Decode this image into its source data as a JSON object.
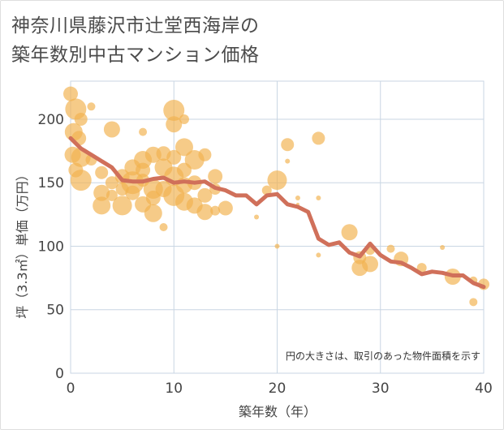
{
  "title_line1": "神奈川県藤沢市辻堂西海岸の",
  "title_line2": "築年数別中古マンション価格",
  "chart_data": {
    "type": "scatter",
    "title": "神奈川県藤沢市辻堂西海岸の築年数別中古マンション価格",
    "xlabel": "築年数（年）",
    "ylabel": "坪（3.3㎡）単価（万円）",
    "note": "円の大きさは、取引のあった物件面積を示す",
    "xlim": [
      0,
      40
    ],
    "ylim": [
      0,
      230
    ],
    "xticks": [
      "0",
      "10",
      "20",
      "30",
      "40"
    ],
    "yticks": [
      "0",
      "50",
      "100",
      "150",
      "200"
    ],
    "grid": true,
    "colors": {
      "bubble": "#f2b24f",
      "line": "#d0705a",
      "grid": "#c9d6e3"
    },
    "bubbles": [
      {
        "x": 0,
        "y": 220,
        "s": 9
      },
      {
        "x": 0.5,
        "y": 208,
        "s": 13
      },
      {
        "x": 0.3,
        "y": 190,
        "s": 11
      },
      {
        "x": 1,
        "y": 200,
        "s": 8
      },
      {
        "x": 0.8,
        "y": 185,
        "s": 9
      },
      {
        "x": 0.2,
        "y": 172,
        "s": 10
      },
      {
        "x": 1,
        "y": 170,
        "s": 12
      },
      {
        "x": 0.5,
        "y": 160,
        "s": 9
      },
      {
        "x": 1,
        "y": 152,
        "s": 13
      },
      {
        "x": 2,
        "y": 210,
        "s": 5
      },
      {
        "x": 2,
        "y": 168,
        "s": 7
      },
      {
        "x": 3,
        "y": 158,
        "s": 8
      },
      {
        "x": 3,
        "y": 142,
        "s": 10
      },
      {
        "x": 3,
        "y": 132,
        "s": 11
      },
      {
        "x": 4,
        "y": 192,
        "s": 10
      },
      {
        "x": 4,
        "y": 150,
        "s": 8
      },
      {
        "x": 4,
        "y": 140,
        "s": 7
      },
      {
        "x": 5,
        "y": 155,
        "s": 9
      },
      {
        "x": 5,
        "y": 145,
        "s": 8
      },
      {
        "x": 5,
        "y": 132,
        "s": 12
      },
      {
        "x": 6,
        "y": 162,
        "s": 10
      },
      {
        "x": 6,
        "y": 150,
        "s": 14
      },
      {
        "x": 6,
        "y": 142,
        "s": 9
      },
      {
        "x": 7,
        "y": 190,
        "s": 5
      },
      {
        "x": 7,
        "y": 168,
        "s": 11
      },
      {
        "x": 7,
        "y": 160,
        "s": 9
      },
      {
        "x": 7,
        "y": 152,
        "s": 8
      },
      {
        "x": 7,
        "y": 133,
        "s": 10
      },
      {
        "x": 8,
        "y": 172,
        "s": 10
      },
      {
        "x": 8,
        "y": 145,
        "s": 12
      },
      {
        "x": 8,
        "y": 138,
        "s": 9
      },
      {
        "x": 8,
        "y": 126,
        "s": 11
      },
      {
        "x": 9,
        "y": 173,
        "s": 9
      },
      {
        "x": 9,
        "y": 162,
        "s": 11
      },
      {
        "x": 9,
        "y": 145,
        "s": 10
      },
      {
        "x": 9,
        "y": 115,
        "s": 5
      },
      {
        "x": 10,
        "y": 207,
        "s": 13
      },
      {
        "x": 10,
        "y": 196,
        "s": 10
      },
      {
        "x": 10,
        "y": 170,
        "s": 9
      },
      {
        "x": 10,
        "y": 155,
        "s": 12
      },
      {
        "x": 10,
        "y": 140,
        "s": 13
      },
      {
        "x": 11,
        "y": 200,
        "s": 6
      },
      {
        "x": 11,
        "y": 178,
        "s": 11
      },
      {
        "x": 11,
        "y": 160,
        "s": 9
      },
      {
        "x": 11,
        "y": 148,
        "s": 10
      },
      {
        "x": 11,
        "y": 135,
        "s": 11
      },
      {
        "x": 12,
        "y": 168,
        "s": 12
      },
      {
        "x": 12,
        "y": 150,
        "s": 9
      },
      {
        "x": 12,
        "y": 132,
        "s": 10
      },
      {
        "x": 13,
        "y": 172,
        "s": 8
      },
      {
        "x": 13,
        "y": 140,
        "s": 9
      },
      {
        "x": 13,
        "y": 127,
        "s": 10
      },
      {
        "x": 14,
        "y": 155,
        "s": 9
      },
      {
        "x": 14,
        "y": 145,
        "s": 7
      },
      {
        "x": 14,
        "y": 128,
        "s": 6
      },
      {
        "x": 15,
        "y": 130,
        "s": 9
      },
      {
        "x": 18,
        "y": 123,
        "s": 3
      },
      {
        "x": 19,
        "y": 144,
        "s": 6
      },
      {
        "x": 20,
        "y": 152,
        "s": 12
      },
      {
        "x": 20,
        "y": 100,
        "s": 3
      },
      {
        "x": 21,
        "y": 180,
        "s": 8
      },
      {
        "x": 21,
        "y": 167,
        "s": 3
      },
      {
        "x": 22,
        "y": 138,
        "s": 3
      },
      {
        "x": 22,
        "y": 133,
        "s": 2
      },
      {
        "x": 24,
        "y": 185,
        "s": 8
      },
      {
        "x": 24,
        "y": 138,
        "s": 3
      },
      {
        "x": 24,
        "y": 93,
        "s": 3
      },
      {
        "x": 27,
        "y": 111,
        "s": 10
      },
      {
        "x": 28,
        "y": 83,
        "s": 10
      },
      {
        "x": 28,
        "y": 91,
        "s": 8
      },
      {
        "x": 29,
        "y": 86,
        "s": 10
      },
      {
        "x": 29,
        "y": 97,
        "s": 6
      },
      {
        "x": 31,
        "y": 98,
        "s": 5
      },
      {
        "x": 32,
        "y": 90,
        "s": 9
      },
      {
        "x": 34,
        "y": 83,
        "s": 6
      },
      {
        "x": 36,
        "y": 99,
        "s": 3
      },
      {
        "x": 37,
        "y": 76,
        "s": 10
      },
      {
        "x": 39,
        "y": 56,
        "s": 5
      },
      {
        "x": 39,
        "y": 73,
        "s": 5
      },
      {
        "x": 40,
        "y": 70,
        "s": 7
      }
    ],
    "series": [
      {
        "x": [
          0,
          1,
          2,
          3,
          4,
          5,
          6,
          7,
          8,
          9,
          10,
          11,
          12,
          13,
          14,
          15,
          16,
          17,
          18,
          19,
          20,
          21,
          22,
          23,
          24,
          25,
          26,
          27,
          28,
          29,
          30,
          31,
          32,
          33,
          34,
          35,
          36,
          37,
          38,
          39,
          40
        ],
        "y": [
          185,
          177,
          172,
          167,
          162,
          152,
          151,
          151,
          153,
          154,
          150,
          151,
          150,
          151,
          146,
          144,
          140,
          140,
          133,
          140,
          141,
          133,
          131,
          127,
          106,
          101,
          103,
          95,
          92,
          102,
          93,
          88,
          87,
          83,
          78,
          80,
          79,
          77,
          77,
          71,
          68
        ]
      }
    ]
  }
}
